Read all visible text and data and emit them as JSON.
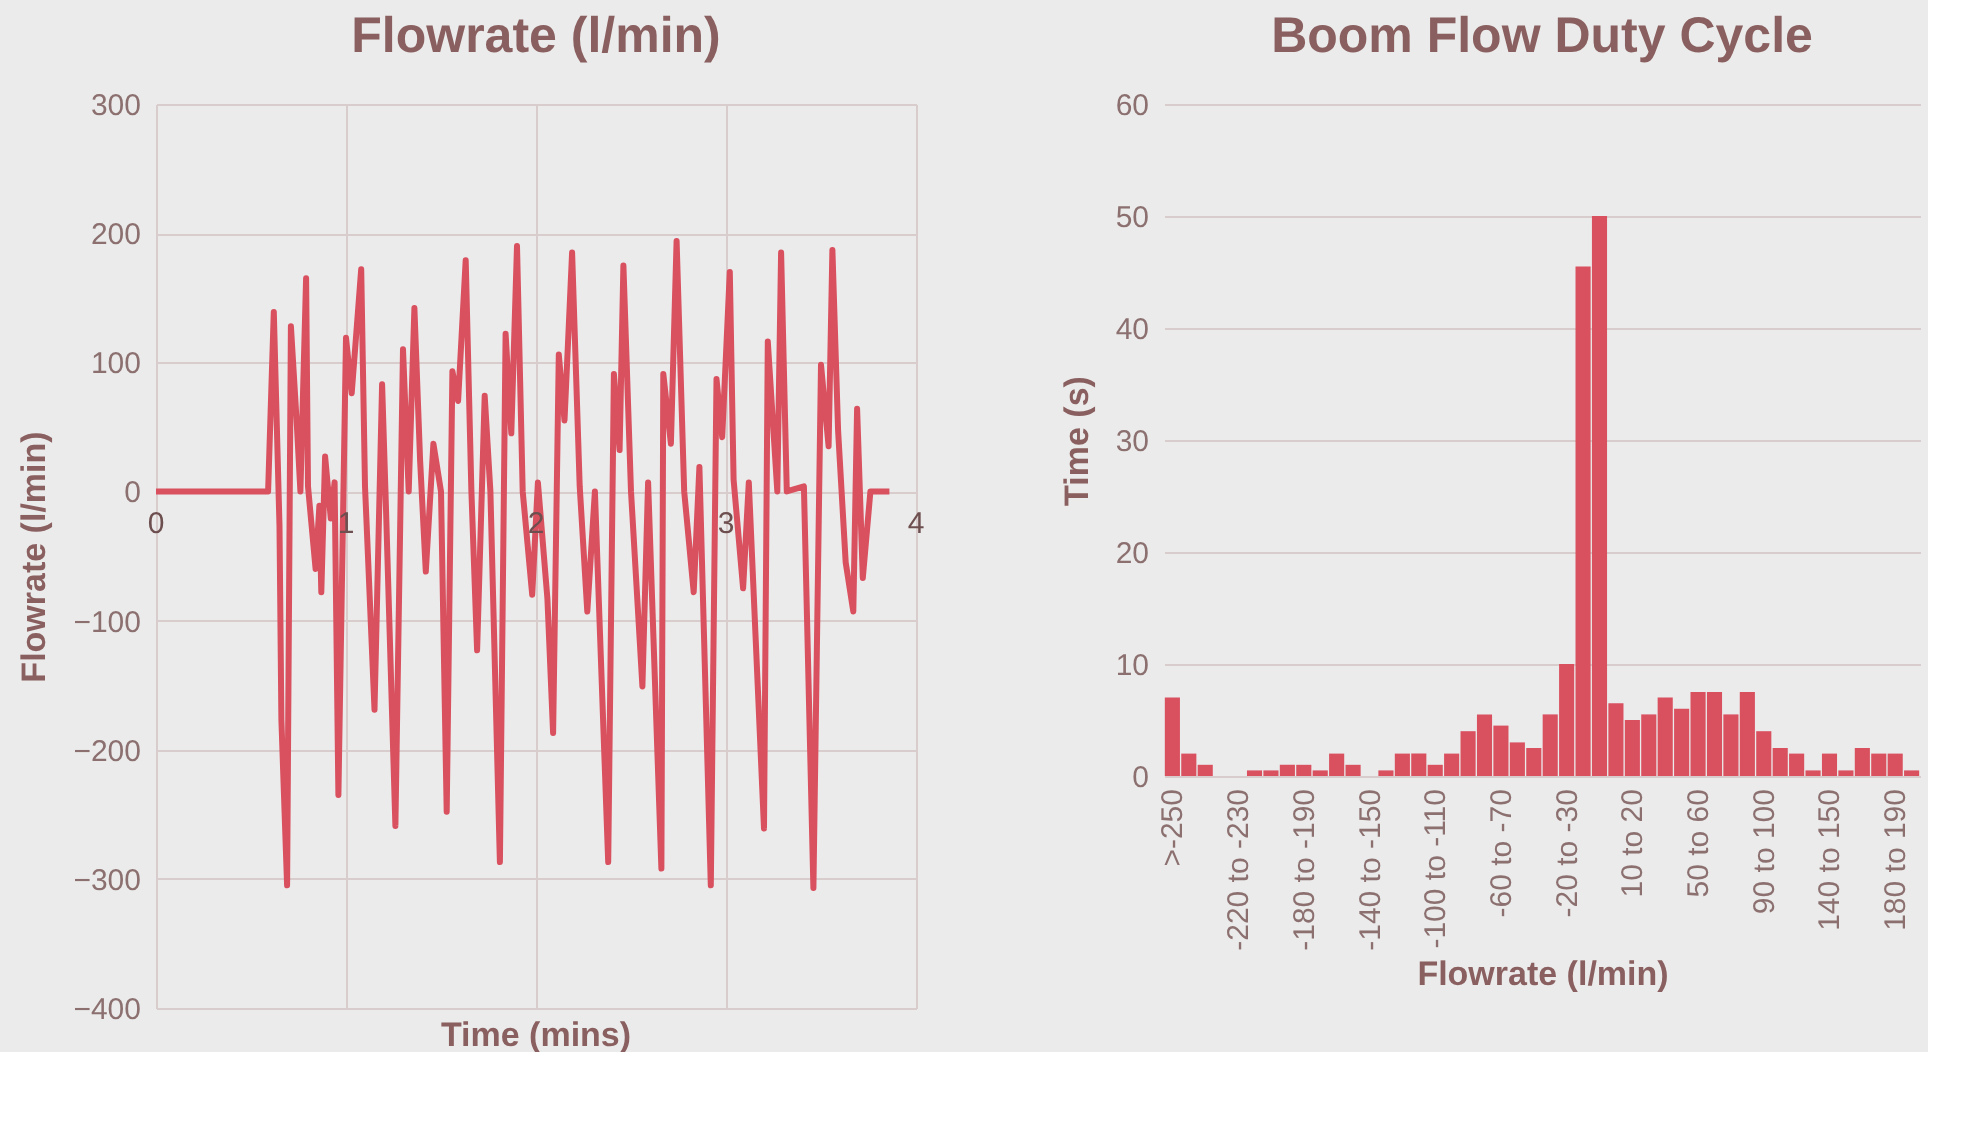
{
  "chart_data": [
    {
      "type": "line",
      "title": "Flowrate (l/min)",
      "xlabel": "Time (mins)",
      "ylabel": "Flowrate (l/min)",
      "color": "#d9505f",
      "grid": true,
      "xlim": [
        0,
        4
      ],
      "xticks": [
        0,
        1,
        2,
        3,
        4
      ],
      "ylim": [
        -400,
        300
      ],
      "yticks": [
        -400,
        -300,
        -200,
        -100,
        0,
        100,
        200,
        300
      ],
      "line_style": "solid",
      "marker": "none",
      "x": [
        0,
        0.59,
        0.62,
        0.65,
        0.66,
        0.69,
        0.71,
        0.74,
        0.76,
        0.79,
        0.8,
        0.84,
        0.86,
        0.87,
        0.89,
        0.92,
        0.94,
        0.96,
        1.0,
        1.03,
        1.08,
        1.1,
        1.15,
        1.19,
        1.21,
        1.26,
        1.3,
        1.33,
        1.36,
        1.39,
        1.42,
        1.46,
        1.5,
        1.53,
        1.56,
        1.59,
        1.63,
        1.66,
        1.69,
        1.73,
        1.76,
        1.81,
        1.84,
        1.87,
        1.9,
        1.93,
        1.98,
        2.01,
        2.06,
        2.09,
        2.12,
        2.15,
        2.19,
        2.23,
        2.27,
        2.31,
        2.38,
        2.41,
        2.44,
        2.46,
        2.5,
        2.56,
        2.59,
        2.66,
        2.67,
        2.71,
        2.74,
        2.78,
        2.83,
        2.86,
        2.92,
        2.95,
        2.98,
        3.02,
        3.04,
        3.09,
        3.12,
        3.2,
        3.22,
        3.27,
        3.29,
        3.32,
        3.41,
        3.46,
        3.5,
        3.54,
        3.56,
        3.59,
        3.63,
        3.67,
        3.69,
        3.72,
        3.76,
        3.86
      ],
      "values": [
        0,
        0,
        139,
        -27,
        -177,
        -305,
        128,
        55,
        0,
        165,
        4,
        -60,
        -11,
        -78,
        27,
        -21,
        7,
        -235,
        119,
        76,
        172,
        4,
        -169,
        83,
        -11,
        -259,
        110,
        0,
        142,
        24,
        -62,
        37,
        0,
        -248,
        93,
        70,
        179,
        0,
        -123,
        74,
        0,
        -287,
        122,
        45,
        190,
        0,
        -80,
        7,
        -83,
        -187,
        106,
        55,
        185,
        4,
        -93,
        0,
        -287,
        91,
        32,
        175,
        0,
        -151,
        7,
        -292,
        91,
        37,
        194,
        0,
        -78,
        19,
        -305,
        87,
        42,
        170,
        9,
        -75,
        7,
        -261,
        116,
        0,
        185,
        0,
        4,
        -307,
        98,
        35,
        187,
        47,
        -55,
        -93,
        64,
        -67,
        0,
        0
      ]
    },
    {
      "type": "bar",
      "title": "Boom Flow Duty Cycle",
      "xlabel": "Flowrate (l/min)",
      "ylabel": "Time (s)",
      "color": "#d9505f",
      "grid": "y",
      "ylim": [
        0,
        60
      ],
      "yticks": [
        0,
        10,
        20,
        30,
        40,
        50,
        60
      ],
      "categories": [
        ">-250",
        null,
        null,
        null,
        "-220 to -230",
        null,
        null,
        null,
        "-180 to -190",
        null,
        null,
        null,
        "-140 to -150",
        null,
        null,
        null,
        "-100 to -110",
        null,
        null,
        null,
        "-60 to -70",
        null,
        null,
        null,
        "-20 to -30",
        null,
        null,
        null,
        "10 to 20",
        null,
        null,
        null,
        "50 to 60",
        null,
        null,
        null,
        "90 to 100",
        null,
        null,
        null,
        "140 to 150",
        null,
        null,
        null,
        "180 to 190",
        null
      ],
      "values": [
        7,
        2,
        1,
        0,
        0,
        0.5,
        0.5,
        1,
        1,
        0.5,
        2,
        1,
        0,
        0.5,
        2,
        2,
        1,
        2,
        4,
        5.5,
        4.5,
        3,
        2.5,
        5.5,
        10,
        45.5,
        50,
        6.5,
        5,
        5.5,
        7,
        6,
        7.5,
        7.5,
        5.5,
        7.5,
        4,
        2.5,
        2,
        0.5,
        2,
        0.5,
        2.5,
        2,
        2,
        0.5
      ]
    }
  ]
}
